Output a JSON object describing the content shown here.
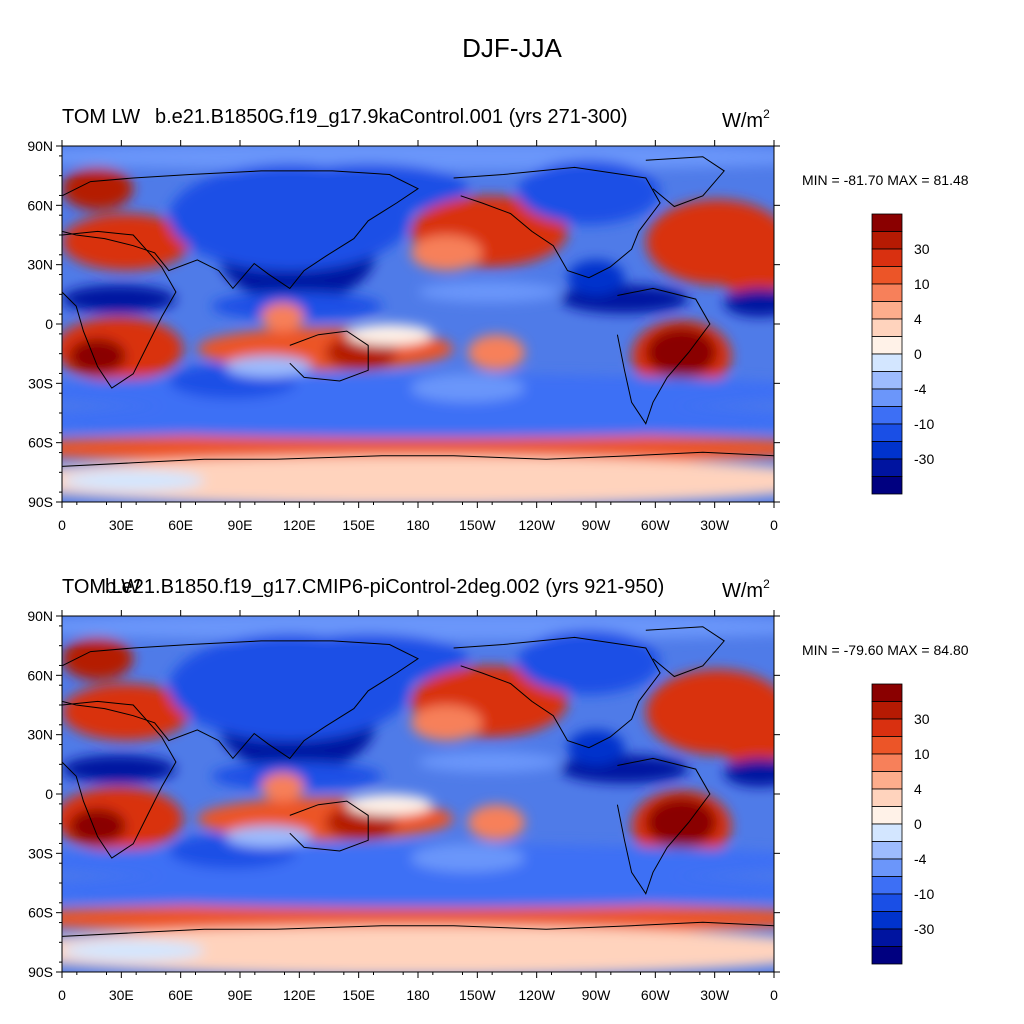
{
  "title": "DJF-JJA",
  "colors": {
    "levels_fill": [
      "#000080",
      "#0014a0",
      "#0033cc",
      "#1a4fe6",
      "#3d6ff5",
      "#6b96fa",
      "#9dbbfd",
      "#d3e6ff",
      "#fff2e8",
      "#ffd3bd",
      "#fdad8c",
      "#f7805a",
      "#ec5528",
      "#d93010",
      "#b51a03",
      "#8a0000"
    ],
    "ocean_base": "#4f7be8",
    "coast": "#000000"
  },
  "chart_data": [
    {
      "type": "heatmap",
      "panel": "top",
      "left_title": "TOM LW",
      "case_name": "b.e21.B1850G.f19_g17.9kaControl.001 (yrs 271-300)",
      "units": "W/m",
      "units_sup": "2",
      "min_max_label": "MIN = -81.70 MAX =  81.48",
      "min": -81.7,
      "max": 81.48,
      "y_ticks": [
        "90N",
        "60N",
        "30N",
        "0",
        "30S",
        "60S",
        "90S"
      ],
      "x_ticks": [
        "0",
        "30E",
        "60E",
        "90E",
        "120E",
        "150E",
        "180",
        "150W",
        "120W",
        "90W",
        "60W",
        "30W",
        "0"
      ],
      "colorbar_labels": [
        "30",
        "10",
        "4",
        "0",
        "-4",
        "-10",
        "-30"
      ]
    },
    {
      "type": "heatmap",
      "panel": "bottom",
      "left_title": "TOM LW",
      "case_name": "b.e21.B1850.f19_g17.CMIP6-piControl-2deg.002 (yrs 921-950)",
      "units": "W/m",
      "units_sup": "2",
      "min_max_label": "MIN = -79.60 MAX =  84.80",
      "min": -79.6,
      "max": 84.8,
      "y_ticks": [
        "90N",
        "60N",
        "30N",
        "0",
        "30S",
        "60S",
        "90S"
      ],
      "x_ticks": [
        "0",
        "30E",
        "60E",
        "90E",
        "120E",
        "150E",
        "180",
        "150W",
        "120W",
        "90W",
        "60W",
        "30W",
        "0"
      ],
      "colorbar_labels": [
        "30",
        "10",
        "4",
        "0",
        "-4",
        "-10",
        "-30"
      ]
    }
  ]
}
